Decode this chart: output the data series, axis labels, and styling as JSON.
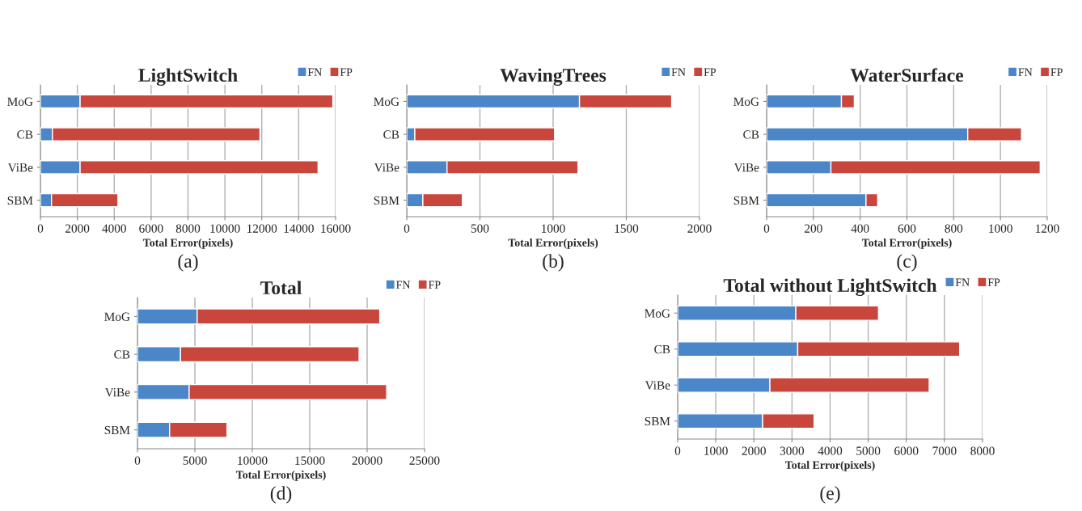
{
  "chart_data": [
    {
      "type": "bar",
      "orientation": "horizontal",
      "stacked": true,
      "title": "LightSwitch",
      "xlabel": "Total Error(pixels)",
      "categories": [
        "MoG",
        "CB",
        "ViBe",
        "SBM"
      ],
      "series": [
        {
          "name": "FN",
          "color": "#4a86c8",
          "values": [
            2150,
            650,
            2150,
            600
          ]
        },
        {
          "name": "FP",
          "color": "#c9463d",
          "values": [
            13700,
            11250,
            12900,
            3600
          ]
        }
      ],
      "xlim": [
        0,
        16000
      ],
      "xticks": [
        0,
        2000,
        4000,
        6000,
        8000,
        10000,
        12000,
        14000,
        16000
      ],
      "grid": "x",
      "legend": "top right",
      "annotations": [
        "(a)"
      ]
    },
    {
      "type": "bar",
      "orientation": "horizontal",
      "stacked": true,
      "title": "WavingTrees",
      "xlabel": "Total Error(pixels)",
      "categories": [
        "MoG",
        "CB",
        "ViBe",
        "SBM"
      ],
      "series": [
        {
          "name": "FN",
          "color": "#4a86c8",
          "values": [
            1180,
            55,
            275,
            110
          ]
        },
        {
          "name": "FP",
          "color": "#c9463d",
          "values": [
            630,
            955,
            895,
            270
          ]
        }
      ],
      "xlim": [
        0,
        2000
      ],
      "xticks": [
        0,
        500,
        1000,
        1500,
        2000
      ],
      "grid": "x",
      "legend": "top right",
      "annotations": [
        "(b)"
      ]
    },
    {
      "type": "bar",
      "orientation": "horizontal",
      "stacked": true,
      "title": "WaterSurface",
      "xlabel": "Total Error(pixels)",
      "categories": [
        "MoG",
        "CB",
        "ViBe",
        "SBM"
      ],
      "series": [
        {
          "name": "FN",
          "color": "#4a86c8",
          "values": [
            320,
            860,
            275,
            425
          ]
        },
        {
          "name": "FP",
          "color": "#c9463d",
          "values": [
            55,
            230,
            895,
            50
          ]
        }
      ],
      "xlim": [
        0,
        1200
      ],
      "xticks": [
        0,
        200,
        400,
        600,
        800,
        1000,
        1200
      ],
      "grid": "x",
      "legend": "top right",
      "annotations": [
        "(c)"
      ]
    },
    {
      "type": "bar",
      "orientation": "horizontal",
      "stacked": true,
      "title": "Total",
      "xlabel": "Total Error(pixels)",
      "categories": [
        "MoG",
        "CB",
        "ViBe",
        "SBM"
      ],
      "series": [
        {
          "name": "FN",
          "color": "#4a86c8",
          "values": [
            5200,
            3750,
            4500,
            2800
          ]
        },
        {
          "name": "FP",
          "color": "#c9463d",
          "values": [
            15900,
            15550,
            17200,
            5000
          ]
        }
      ],
      "xlim": [
        0,
        25000
      ],
      "xticks": [
        0,
        5000,
        10000,
        15000,
        20000,
        25000
      ],
      "grid": "x",
      "legend": "top right",
      "annotations": [
        "(d)"
      ]
    },
    {
      "type": "bar",
      "orientation": "horizontal",
      "stacked": true,
      "title": "Total without LightSwitch",
      "xlabel": "Total Error(pixels)",
      "categories": [
        "MoG",
        "CB",
        "ViBe",
        "SBM"
      ],
      "series": [
        {
          "name": "FN",
          "color": "#4a86c8",
          "values": [
            3100,
            3150,
            2420,
            2230
          ]
        },
        {
          "name": "FP",
          "color": "#c9463d",
          "values": [
            2170,
            4250,
            4180,
            1350
          ]
        }
      ],
      "xlim": [
        0,
        8000
      ],
      "xticks": [
        0,
        1000,
        2000,
        3000,
        4000,
        5000,
        6000,
        7000,
        8000
      ],
      "grid": "x",
      "legend": "top right",
      "annotations": [
        "(e)"
      ]
    }
  ]
}
